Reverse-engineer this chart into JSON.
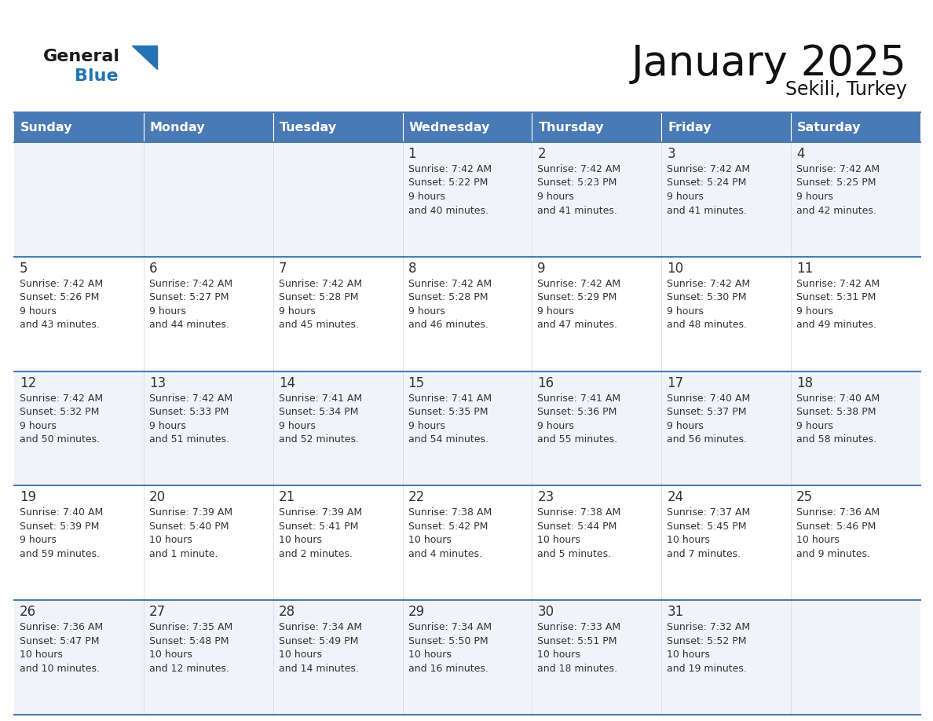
{
  "title": "January 2025",
  "subtitle": "Sekili, Turkey",
  "days_of_week": [
    "Sunday",
    "Monday",
    "Tuesday",
    "Wednesday",
    "Thursday",
    "Friday",
    "Saturday"
  ],
  "header_bg_color": "#4a7ab5",
  "header_text_color": "#FFFFFF",
  "row_bg_even": "#f0f4f8",
  "row_bg_odd": "#FFFFFF",
  "row_separator_color": "#4a7ab5",
  "col_separator_color": "#c0c0c0",
  "day_number_color": "#333333",
  "cell_text_color": "#333333",
  "logo_general_color": "#1a1a1a",
  "logo_blue_color": "#2474b5",
  "logo_triangle_color": "#2474b5",
  "weeks": [
    [
      {
        "day": "",
        "sunrise": "",
        "sunset": "",
        "daylight": ""
      },
      {
        "day": "",
        "sunrise": "",
        "sunset": "",
        "daylight": ""
      },
      {
        "day": "",
        "sunrise": "",
        "sunset": "",
        "daylight": ""
      },
      {
        "day": "1",
        "sunrise": "7:42 AM",
        "sunset": "5:22 PM",
        "daylight": "9 hours\nand 40 minutes."
      },
      {
        "day": "2",
        "sunrise": "7:42 AM",
        "sunset": "5:23 PM",
        "daylight": "9 hours\nand 41 minutes."
      },
      {
        "day": "3",
        "sunrise": "7:42 AM",
        "sunset": "5:24 PM",
        "daylight": "9 hours\nand 41 minutes."
      },
      {
        "day": "4",
        "sunrise": "7:42 AM",
        "sunset": "5:25 PM",
        "daylight": "9 hours\nand 42 minutes."
      }
    ],
    [
      {
        "day": "5",
        "sunrise": "7:42 AM",
        "sunset": "5:26 PM",
        "daylight": "9 hours\nand 43 minutes."
      },
      {
        "day": "6",
        "sunrise": "7:42 AM",
        "sunset": "5:27 PM",
        "daylight": "9 hours\nand 44 minutes."
      },
      {
        "day": "7",
        "sunrise": "7:42 AM",
        "sunset": "5:28 PM",
        "daylight": "9 hours\nand 45 minutes."
      },
      {
        "day": "8",
        "sunrise": "7:42 AM",
        "sunset": "5:28 PM",
        "daylight": "9 hours\nand 46 minutes."
      },
      {
        "day": "9",
        "sunrise": "7:42 AM",
        "sunset": "5:29 PM",
        "daylight": "9 hours\nand 47 minutes."
      },
      {
        "day": "10",
        "sunrise": "7:42 AM",
        "sunset": "5:30 PM",
        "daylight": "9 hours\nand 48 minutes."
      },
      {
        "day": "11",
        "sunrise": "7:42 AM",
        "sunset": "5:31 PM",
        "daylight": "9 hours\nand 49 minutes."
      }
    ],
    [
      {
        "day": "12",
        "sunrise": "7:42 AM",
        "sunset": "5:32 PM",
        "daylight": "9 hours\nand 50 minutes."
      },
      {
        "day": "13",
        "sunrise": "7:42 AM",
        "sunset": "5:33 PM",
        "daylight": "9 hours\nand 51 minutes."
      },
      {
        "day": "14",
        "sunrise": "7:41 AM",
        "sunset": "5:34 PM",
        "daylight": "9 hours\nand 52 minutes."
      },
      {
        "day": "15",
        "sunrise": "7:41 AM",
        "sunset": "5:35 PM",
        "daylight": "9 hours\nand 54 minutes."
      },
      {
        "day": "16",
        "sunrise": "7:41 AM",
        "sunset": "5:36 PM",
        "daylight": "9 hours\nand 55 minutes."
      },
      {
        "day": "17",
        "sunrise": "7:40 AM",
        "sunset": "5:37 PM",
        "daylight": "9 hours\nand 56 minutes."
      },
      {
        "day": "18",
        "sunrise": "7:40 AM",
        "sunset": "5:38 PM",
        "daylight": "9 hours\nand 58 minutes."
      }
    ],
    [
      {
        "day": "19",
        "sunrise": "7:40 AM",
        "sunset": "5:39 PM",
        "daylight": "9 hours\nand 59 minutes."
      },
      {
        "day": "20",
        "sunrise": "7:39 AM",
        "sunset": "5:40 PM",
        "daylight": "10 hours\nand 1 minute."
      },
      {
        "day": "21",
        "sunrise": "7:39 AM",
        "sunset": "5:41 PM",
        "daylight": "10 hours\nand 2 minutes."
      },
      {
        "day": "22",
        "sunrise": "7:38 AM",
        "sunset": "5:42 PM",
        "daylight": "10 hours\nand 4 minutes."
      },
      {
        "day": "23",
        "sunrise": "7:38 AM",
        "sunset": "5:44 PM",
        "daylight": "10 hours\nand 5 minutes."
      },
      {
        "day": "24",
        "sunrise": "7:37 AM",
        "sunset": "5:45 PM",
        "daylight": "10 hours\nand 7 minutes."
      },
      {
        "day": "25",
        "sunrise": "7:36 AM",
        "sunset": "5:46 PM",
        "daylight": "10 hours\nand 9 minutes."
      }
    ],
    [
      {
        "day": "26",
        "sunrise": "7:36 AM",
        "sunset": "5:47 PM",
        "daylight": "10 hours\nand 10 minutes."
      },
      {
        "day": "27",
        "sunrise": "7:35 AM",
        "sunset": "5:48 PM",
        "daylight": "10 hours\nand 12 minutes."
      },
      {
        "day": "28",
        "sunrise": "7:34 AM",
        "sunset": "5:49 PM",
        "daylight": "10 hours\nand 14 minutes."
      },
      {
        "day": "29",
        "sunrise": "7:34 AM",
        "sunset": "5:50 PM",
        "daylight": "10 hours\nand 16 minutes."
      },
      {
        "day": "30",
        "sunrise": "7:33 AM",
        "sunset": "5:51 PM",
        "daylight": "10 hours\nand 18 minutes."
      },
      {
        "day": "31",
        "sunrise": "7:32 AM",
        "sunset": "5:52 PM",
        "daylight": "10 hours\nand 19 minutes."
      },
      {
        "day": "",
        "sunrise": "",
        "sunset": "",
        "daylight": ""
      }
    ]
  ]
}
